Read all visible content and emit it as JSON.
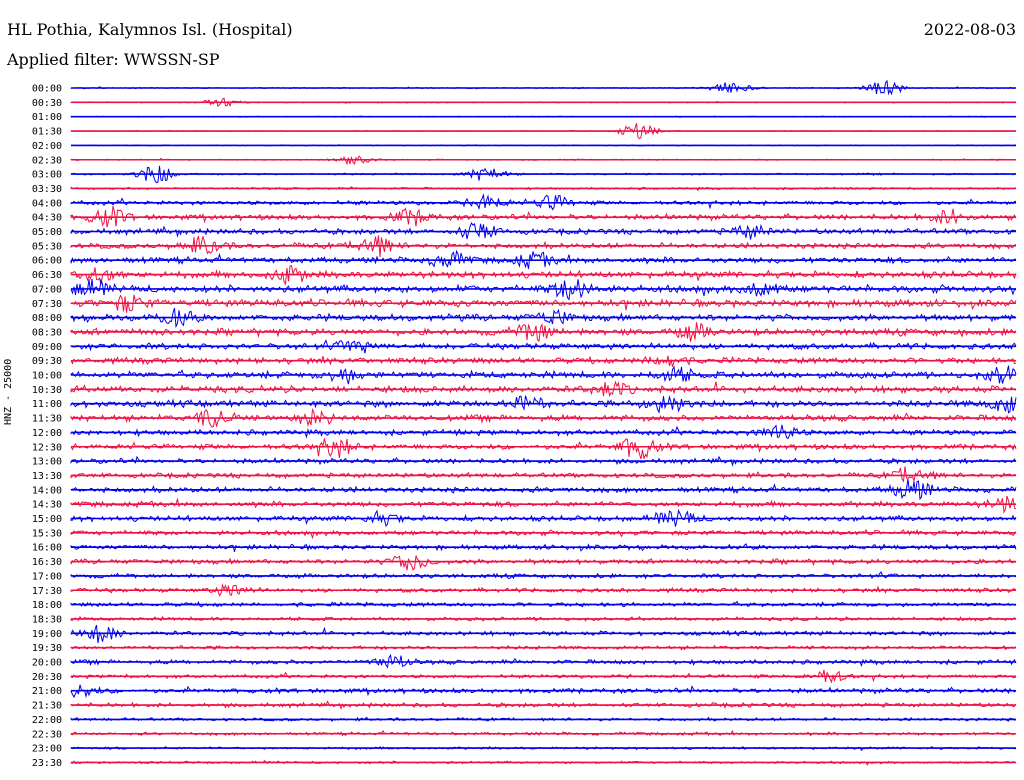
{
  "header": {
    "station": "HL Pothia, Kalymnos Isl. (Hospital)",
    "date": "2022-08-03",
    "filter": "Applied filter: WWSSN-SP"
  },
  "colors": {
    "even_trace": "#0000ee",
    "odd_trace": "#ee1144"
  },
  "chart_data": {
    "type": "line",
    "title": "HL Pothia, Kalymnos Isl. (Hospital)",
    "ylabel": "HNZ - 25000",
    "xlabel": "",
    "row_labels": [
      "00:00",
      "00:30",
      "01:00",
      "01:30",
      "02:00",
      "02:30",
      "03:00",
      "03:30",
      "04:00",
      "04:30",
      "05:00",
      "05:30",
      "06:00",
      "06:30",
      "07:00",
      "07:30",
      "08:00",
      "08:30",
      "09:00",
      "09:30",
      "10:00",
      "10:30",
      "11:00",
      "11:30",
      "12:00",
      "12:30",
      "13:00",
      "13:30",
      "14:00",
      "14:30",
      "15:00",
      "15:30",
      "16:00",
      "16:30",
      "17:00",
      "17:30",
      "18:00",
      "18:30",
      "19:00",
      "19:30",
      "20:00",
      "20:30",
      "21:00",
      "21:30",
      "22:00",
      "22:30",
      "23:00",
      "23:30"
    ],
    "row_interval_minutes": 30,
    "base_amplitude": [
      0.1,
      0.08,
      0.08,
      0.08,
      0.08,
      0.1,
      0.15,
      0.18,
      0.35,
      0.45,
      0.45,
      0.45,
      0.5,
      0.55,
      0.6,
      0.6,
      0.55,
      0.55,
      0.5,
      0.5,
      0.55,
      0.55,
      0.55,
      0.5,
      0.45,
      0.45,
      0.4,
      0.4,
      0.45,
      0.45,
      0.45,
      0.4,
      0.4,
      0.4,
      0.35,
      0.35,
      0.35,
      0.3,
      0.35,
      0.3,
      0.35,
      0.3,
      0.4,
      0.35,
      0.25,
      0.25,
      0.2,
      0.2
    ],
    "events": [
      {
        "row": "00:00",
        "t": 0.7,
        "amp": 0.9
      },
      {
        "row": "00:00",
        "t": 0.86,
        "amp": 1.0
      },
      {
        "row": "00:30",
        "t": 0.16,
        "amp": 0.6
      },
      {
        "row": "01:30",
        "t": 0.6,
        "amp": 1.1
      },
      {
        "row": "02:30",
        "t": 0.3,
        "amp": 0.6
      },
      {
        "row": "03:00",
        "t": 0.09,
        "amp": 1.3
      },
      {
        "row": "03:00",
        "t": 0.44,
        "amp": 1.0
      },
      {
        "row": "04:00",
        "t": 0.44,
        "amp": 1.0
      },
      {
        "row": "04:00",
        "t": 0.51,
        "amp": 0.9
      },
      {
        "row": "04:30",
        "t": 0.04,
        "amp": 1.2
      },
      {
        "row": "04:30",
        "t": 0.36,
        "amp": 1.0
      },
      {
        "row": "04:30",
        "t": 0.93,
        "amp": 0.9
      },
      {
        "row": "05:00",
        "t": 0.43,
        "amp": 1.1
      },
      {
        "row": "05:00",
        "t": 0.72,
        "amp": 0.8
      },
      {
        "row": "05:30",
        "t": 0.14,
        "amp": 1.2
      },
      {
        "row": "05:30",
        "t": 0.32,
        "amp": 1.5
      },
      {
        "row": "06:00",
        "t": 0.4,
        "amp": 1.0
      },
      {
        "row": "06:00",
        "t": 0.49,
        "amp": 0.9
      },
      {
        "row": "06:30",
        "t": 0.03,
        "amp": 1.0
      },
      {
        "row": "06:30",
        "t": 0.23,
        "amp": 1.1
      },
      {
        "row": "07:00",
        "t": 0.02,
        "amp": 0.9
      },
      {
        "row": "07:00",
        "t": 0.53,
        "amp": 1.3
      },
      {
        "row": "07:00",
        "t": 0.73,
        "amp": 1.0
      },
      {
        "row": "07:30",
        "t": 0.06,
        "amp": 1.0
      },
      {
        "row": "08:00",
        "t": 0.11,
        "amp": 1.0
      },
      {
        "row": "08:00",
        "t": 0.51,
        "amp": 0.9
      },
      {
        "row": "08:30",
        "t": 0.49,
        "amp": 1.1
      },
      {
        "row": "08:30",
        "t": 0.66,
        "amp": 0.9
      },
      {
        "row": "09:00",
        "t": 0.3,
        "amp": 0.8
      },
      {
        "row": "09:30",
        "t": 0.63,
        "amp": 0.8
      },
      {
        "row": "10:00",
        "t": 0.29,
        "amp": 0.9
      },
      {
        "row": "10:00",
        "t": 0.64,
        "amp": 0.9
      },
      {
        "row": "10:00",
        "t": 0.99,
        "amp": 1.3
      },
      {
        "row": "10:30",
        "t": 0.57,
        "amp": 0.9
      },
      {
        "row": "11:00",
        "t": 0.48,
        "amp": 0.9
      },
      {
        "row": "11:00",
        "t": 0.63,
        "amp": 1.2
      },
      {
        "row": "11:00",
        "t": 0.99,
        "amp": 1.0
      },
      {
        "row": "11:30",
        "t": 0.15,
        "amp": 1.2
      },
      {
        "row": "11:30",
        "t": 0.26,
        "amp": 0.9
      },
      {
        "row": "12:00",
        "t": 0.75,
        "amp": 0.9
      },
      {
        "row": "12:30",
        "t": 0.28,
        "amp": 1.3
      },
      {
        "row": "12:30",
        "t": 0.6,
        "amp": 1.6
      },
      {
        "row": "13:30",
        "t": 0.89,
        "amp": 1.2
      },
      {
        "row": "14:00",
        "t": 0.89,
        "amp": 1.4
      },
      {
        "row": "14:30",
        "t": 0.99,
        "amp": 1.0
      },
      {
        "row": "15:00",
        "t": 0.64,
        "amp": 1.1
      },
      {
        "row": "15:00",
        "t": 0.33,
        "amp": 0.7
      },
      {
        "row": "16:30",
        "t": 0.36,
        "amp": 1.1
      },
      {
        "row": "17:30",
        "t": 0.17,
        "amp": 0.8
      },
      {
        "row": "19:00",
        "t": 0.03,
        "amp": 1.2
      },
      {
        "row": "20:00",
        "t": 0.34,
        "amp": 0.9
      },
      {
        "row": "20:30",
        "t": 0.8,
        "amp": 0.9
      },
      {
        "row": "21:00",
        "t": 0.01,
        "amp": 0.7
      }
    ],
    "grid": false,
    "legend": "none"
  }
}
